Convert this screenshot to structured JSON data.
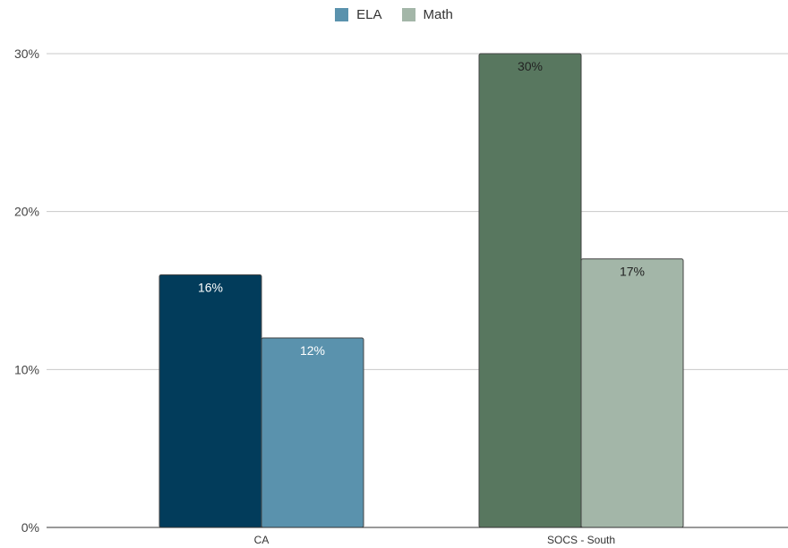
{
  "chart_data": {
    "type": "bar",
    "categories": [
      "CA",
      "SOCS - South"
    ],
    "series": [
      {
        "name": "ELA",
        "values": [
          16,
          30
        ],
        "labels": [
          "16%",
          "30%"
        ]
      },
      {
        "name": "Math",
        "values": [
          12,
          17
        ],
        "labels": [
          "12%",
          "17%"
        ]
      }
    ],
    "ylim": [
      0,
      30
    ],
    "yticks": [
      0,
      10,
      20,
      30
    ],
    "ytick_labels": [
      "0%",
      "10%",
      "20%",
      "30%"
    ],
    "grid": true,
    "legend_position": "top",
    "legend_colors": [
      "#5a92ad",
      "#a3b6a8"
    ],
    "bar_colors": [
      [
        "#023c5b",
        "#5a92ad"
      ],
      [
        "#58775f",
        "#a3b6a8"
      ]
    ],
    "label_colors": [
      [
        "#ffffff",
        "#222222"
      ],
      [
        "#ffffff",
        "#222222"
      ]
    ]
  }
}
